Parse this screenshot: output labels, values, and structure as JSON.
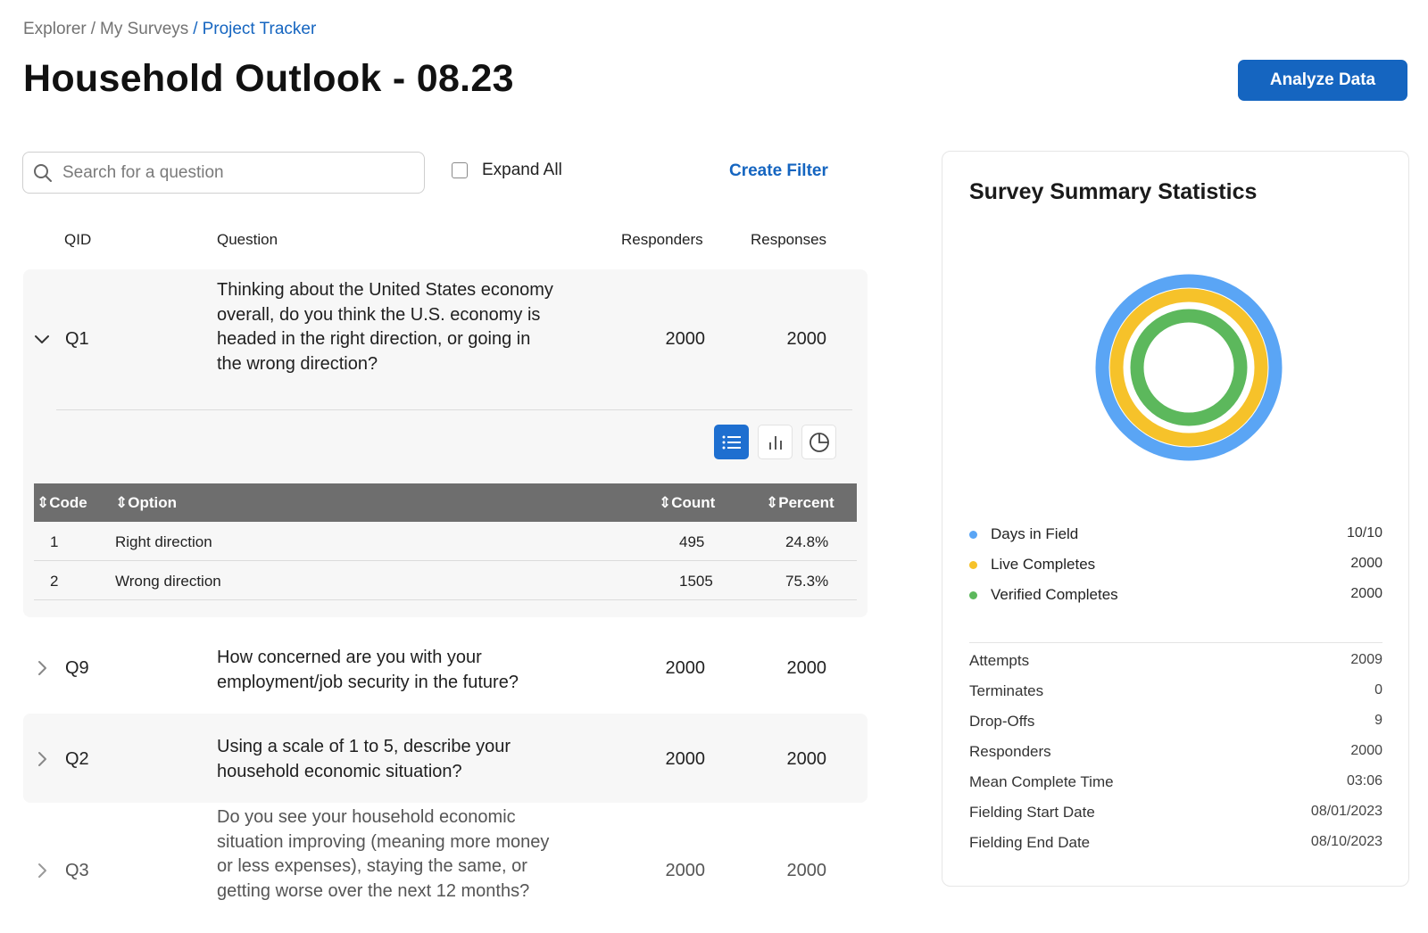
{
  "breadcrumb": {
    "items": [
      "Explorer",
      "My Surveys",
      "Project Tracker"
    ],
    "separator": "/"
  },
  "page_title": "Household Outlook - 08.23",
  "toolbar": {
    "analyze_label": "Analyze Data",
    "search_placeholder": "Search for a question",
    "expand_all_label": "Expand All",
    "expand_all_checked": false,
    "create_filter_label": "Create Filter"
  },
  "table": {
    "headers": {
      "qid": "QID",
      "question": "Question",
      "responders": "Responders",
      "responses": "Responses"
    },
    "questions": [
      {
        "qid": "Q1",
        "text": "Thinking about the United States economy overall, do you think the U.S. economy is headed in the right direction, or going in the wrong direction?",
        "responders": "2000",
        "responses": "2000",
        "expanded": true,
        "chevron_icon": "chevron-down-icon"
      },
      {
        "qid": "Q9",
        "text": "How concerned are you with your employment/job security in the future?",
        "responders": "2000",
        "responses": "2000",
        "expanded": false,
        "chevron_icon": "chevron-right-icon"
      },
      {
        "qid": "Q2",
        "text": "Using a scale of 1 to 5, describe your household economic situation?",
        "responders": "2000",
        "responses": "2000",
        "expanded": false,
        "chevron_icon": "chevron-right-icon"
      },
      {
        "qid": "Q3",
        "text": "Do you see your household economic situation improving (meaning more money or less expenses), staying the same, or getting worse over the next 12 months?",
        "responders": "2000",
        "responses": "2000",
        "expanded": false,
        "chevron_icon": "chevron-right-icon"
      }
    ],
    "view_buttons": [
      {
        "icon": "list-icon",
        "active": true
      },
      {
        "icon": "bar-chart-icon",
        "active": false
      },
      {
        "icon": "pie-chart-icon",
        "active": false
      }
    ],
    "options_table": {
      "headers": {
        "code": "Code",
        "option": "Option",
        "count": "Count",
        "percent": "Percent"
      },
      "sort_icon": "sort-icon",
      "rows": [
        {
          "code": "1",
          "option": "Right direction",
          "count": "495",
          "percent": "24.8%"
        },
        {
          "code": "2",
          "option": "Wrong direction",
          "count": "1505",
          "percent": "75.3%"
        }
      ]
    }
  },
  "summary": {
    "title": "Survey Summary Statistics",
    "legend": [
      {
        "label": "Days in Field",
        "value": "10/10",
        "color": "#5aa5f5"
      },
      {
        "label": "Live Completes",
        "value": "2000",
        "color": "#f6c22a"
      },
      {
        "label": "Verified Completes",
        "value": "2000",
        "color": "#5cb85c"
      }
    ],
    "stats": [
      {
        "label": "Attempts",
        "value": "2009"
      },
      {
        "label": "Terminates",
        "value": "0"
      },
      {
        "label": "Drop-Offs",
        "value": "9"
      },
      {
        "label": "Responders",
        "value": "2000"
      },
      {
        "label": "Mean Complete Time",
        "value": "03:06"
      },
      {
        "label": "Fielding Start Date",
        "value": "08/01/2023"
      },
      {
        "label": "Fielding End Date",
        "value": "08/10/2023"
      }
    ]
  },
  "colors": {
    "accent": "#1565c0",
    "table_header": "#6e6e6e",
    "card_bg": "#f7f7f7"
  }
}
